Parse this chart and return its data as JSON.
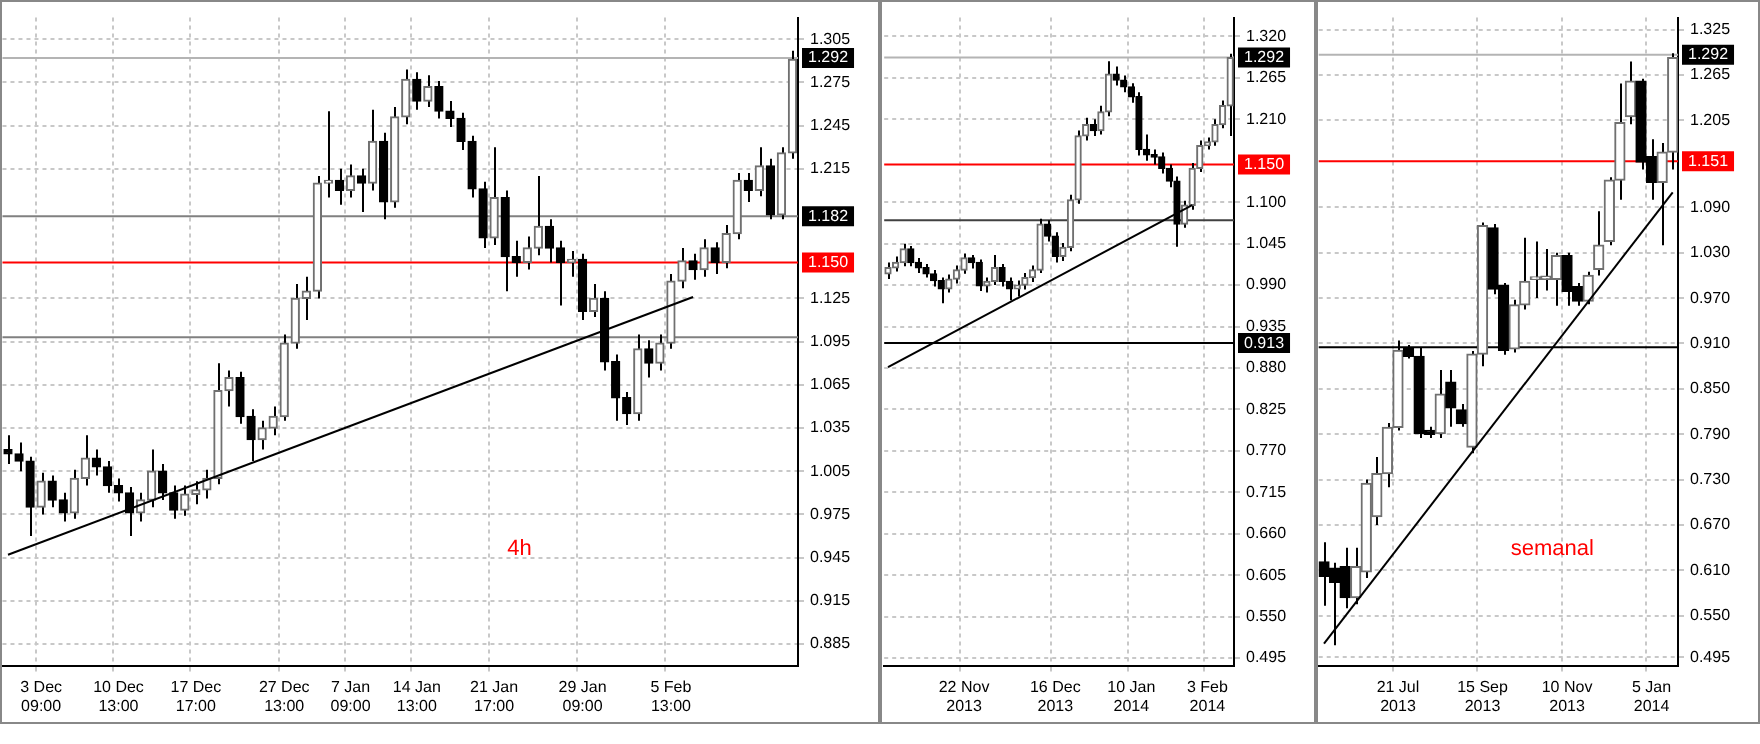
{
  "chart_data": [
    {
      "type": "candlestick",
      "categories": [
        null,
        null,
        null,
        "3 Dec 09:00",
        null,
        null,
        null,
        null,
        null,
        null,
        "10 Dec 13:00",
        null,
        null,
        null,
        null,
        null,
        null,
        "17 Dec 17:00",
        null,
        null,
        null,
        null,
        null,
        null,
        null,
        "27 Dec 13:00",
        null,
        null,
        null,
        null,
        null,
        "7 Jan 09:00",
        null,
        null,
        null,
        null,
        null,
        "14 Jan 13:00",
        null,
        null,
        null,
        null,
        null,
        null,
        "21 Jan 17:00",
        null,
        null,
        null,
        null,
        null,
        null,
        null,
        "29 Jan 09:00",
        null,
        null,
        null,
        null,
        null,
        null,
        null,
        "5 Feb 13:00",
        null,
        null,
        null,
        null,
        null,
        null,
        null,
        null,
        null,
        null,
        null
      ],
      "ohlc": [
        [
          1.02,
          1.03,
          1.01,
          1.017
        ],
        [
          1.017,
          1.025,
          1.005,
          1.012
        ],
        [
          1.012,
          1.015,
          0.96,
          0.98
        ],
        [
          0.98,
          1.004,
          0.975,
          0.998
        ],
        [
          0.998,
          1.002,
          0.98,
          0.985
        ],
        [
          0.985,
          0.99,
          0.97,
          0.976
        ],
        [
          0.976,
          1.006,
          0.972,
          1.0
        ],
        [
          1.0,
          1.03,
          0.995,
          1.014
        ],
        [
          1.014,
          1.02,
          1.002,
          1.008
        ],
        [
          1.008,
          1.012,
          0.99,
          0.995
        ],
        [
          0.995,
          1.0,
          0.984,
          0.99
        ],
        [
          0.99,
          0.994,
          0.96,
          0.976
        ],
        [
          0.976,
          0.99,
          0.97,
          0.985
        ],
        [
          0.985,
          1.02,
          0.98,
          1.005
        ],
        [
          1.005,
          1.01,
          0.985,
          0.99
        ],
        [
          0.99,
          0.995,
          0.972,
          0.978
        ],
        [
          0.978,
          0.995,
          0.974,
          0.989
        ],
        [
          0.989,
          0.998,
          0.982,
          0.992
        ],
        [
          0.992,
          1.006,
          0.986,
          1.0
        ],
        [
          1.0,
          1.08,
          0.996,
          1.061
        ],
        [
          1.061,
          1.075,
          1.05,
          1.07
        ],
        [
          1.07,
          1.074,
          1.038,
          1.043
        ],
        [
          1.043,
          1.048,
          1.012,
          1.027
        ],
        [
          1.027,
          1.04,
          1.02,
          1.035
        ],
        [
          1.035,
          1.05,
          1.03,
          1.043
        ],
        [
          1.043,
          1.1,
          1.04,
          1.094
        ],
        [
          1.094,
          1.135,
          1.09,
          1.125
        ],
        [
          1.125,
          1.14,
          1.11,
          1.13
        ],
        [
          1.13,
          1.21,
          1.125,
          1.205
        ],
        [
          1.205,
          1.255,
          1.195,
          1.207
        ],
        [
          1.207,
          1.215,
          1.19,
          1.2
        ],
        [
          1.2,
          1.218,
          1.195,
          1.21
        ],
        [
          1.21,
          1.215,
          1.185,
          1.205
        ],
        [
          1.205,
          1.256,
          1.2,
          1.234
        ],
        [
          1.234,
          1.24,
          1.18,
          1.192
        ],
        [
          1.192,
          1.258,
          1.188,
          1.251
        ],
        [
          1.251,
          1.284,
          1.246,
          1.277
        ],
        [
          1.277,
          1.282,
          1.256,
          1.262
        ],
        [
          1.262,
          1.28,
          1.258,
          1.272
        ],
        [
          1.272,
          1.276,
          1.25,
          1.255
        ],
        [
          1.255,
          1.262,
          1.244,
          1.25
        ],
        [
          1.25,
          1.254,
          1.228,
          1.234
        ],
        [
          1.234,
          1.238,
          1.195,
          1.201
        ],
        [
          1.201,
          1.206,
          1.16,
          1.167
        ],
        [
          1.167,
          1.23,
          1.162,
          1.195
        ],
        [
          1.195,
          1.2,
          1.13,
          1.154
        ],
        [
          1.154,
          1.165,
          1.14,
          1.15
        ],
        [
          1.15,
          1.168,
          1.145,
          1.16
        ],
        [
          1.16,
          1.21,
          1.155,
          1.175
        ],
        [
          1.175,
          1.18,
          1.15,
          1.16
        ],
        [
          1.16,
          1.165,
          1.12,
          1.15
        ],
        [
          1.15,
          1.158,
          1.14,
          1.152
        ],
        [
          1.152,
          1.156,
          1.11,
          1.116
        ],
        [
          1.116,
          1.135,
          1.112,
          1.125
        ],
        [
          1.125,
          1.13,
          1.075,
          1.081
        ],
        [
          1.081,
          1.086,
          1.04,
          1.056
        ],
        [
          1.056,
          1.06,
          1.037,
          1.045
        ],
        [
          1.045,
          1.1,
          1.04,
          1.09
        ],
        [
          1.09,
          1.096,
          1.07,
          1.08
        ],
        [
          1.08,
          1.1,
          1.075,
          1.094
        ],
        [
          1.094,
          1.142,
          1.09,
          1.137
        ],
        [
          1.137,
          1.16,
          1.132,
          1.151
        ],
        [
          1.151,
          1.156,
          1.138,
          1.145
        ],
        [
          1.145,
          1.166,
          1.14,
          1.16
        ],
        [
          1.16,
          1.164,
          1.142,
          1.15
        ],
        [
          1.15,
          1.176,
          1.146,
          1.17
        ],
        [
          1.17,
          1.212,
          1.166,
          1.207
        ],
        [
          1.207,
          1.212,
          1.192,
          1.2
        ],
        [
          1.2,
          1.23,
          1.196,
          1.217
        ],
        [
          1.217,
          1.222,
          1.18,
          1.183
        ],
        [
          1.183,
          1.23,
          1.18,
          1.226
        ],
        [
          1.226,
          1.297,
          1.222,
          1.291
        ]
      ],
      "series": [
        {
          "type": "line",
          "color": "#000000",
          "values": [
            0.947,
            null,
            null,
            null,
            null,
            null,
            null,
            null,
            null,
            null,
            null,
            null,
            null,
            null,
            null,
            null,
            null,
            null,
            null,
            null,
            null,
            null,
            null,
            null,
            null,
            null,
            null,
            null,
            null,
            null,
            null,
            null,
            null,
            null,
            null,
            null,
            null,
            null,
            null,
            null,
            null,
            null,
            null,
            null,
            null,
            null,
            null,
            null,
            null,
            null,
            null,
            null,
            null,
            null,
            null,
            null,
            null,
            null,
            null,
            null,
            null,
            null,
            1.126,
            null,
            null,
            null,
            null,
            null,
            null,
            null,
            null,
            null
          ]
        }
      ],
      "ylim": [
        0.87,
        1.32
      ],
      "yticks": [
        1.305,
        1.275,
        1.245,
        1.215,
        1.125,
        1.095,
        1.065,
        1.035,
        1.005,
        0.975,
        0.945,
        0.915,
        0.885
      ],
      "grid": true,
      "ref_lines": [
        {
          "axis": "y",
          "value": 1.292,
          "label": "1.292",
          "color": "#b4b4b4"
        },
        {
          "axis": "y",
          "value": 1.182,
          "label": "1.182",
          "color": "#808080"
        },
        {
          "axis": "y",
          "value": 1.15,
          "label": "1.150",
          "color": "#ff0000"
        },
        {
          "axis": "y",
          "value": 1.098,
          "color": "#808080"
        }
      ],
      "annotations": [
        "4h"
      ]
    },
    {
      "type": "candlestick",
      "categories": [
        null,
        null,
        null,
        null,
        null,
        null,
        null,
        null,
        null,
        null,
        "22 Nov 2013",
        null,
        null,
        null,
        null,
        null,
        null,
        null,
        null,
        null,
        null,
        null,
        "16 Dec 2013",
        null,
        null,
        null,
        null,
        null,
        null,
        null,
        null,
        null,
        "10 Jan 2014",
        null,
        null,
        null,
        null,
        null,
        null,
        null,
        null,
        null,
        "3 Feb 2014",
        null,
        null,
        null
      ],
      "ohlc": [
        [
          1.005,
          1.02,
          0.998,
          1.013
        ],
        [
          1.013,
          1.028,
          1.008,
          1.02
        ],
        [
          1.02,
          1.045,
          1.015,
          1.038
        ],
        [
          1.038,
          1.042,
          1.015,
          1.02
        ],
        [
          1.02,
          1.026,
          1.006,
          1.013
        ],
        [
          1.013,
          1.018,
          1.0,
          1.005
        ],
        [
          1.005,
          1.01,
          0.988,
          0.996
        ],
        [
          0.996,
          1.0,
          0.966,
          0.985
        ],
        [
          0.985,
          1.004,
          0.98,
          0.998
        ],
        [
          0.998,
          1.016,
          0.992,
          1.01
        ],
        [
          1.01,
          1.032,
          1.005,
          1.026
        ],
        [
          1.026,
          1.03,
          1.012,
          1.02
        ],
        [
          1.02,
          1.024,
          0.982,
          0.989
        ],
        [
          0.989,
          1.0,
          0.98,
          0.995
        ],
        [
          0.995,
          1.03,
          0.99,
          1.013
        ],
        [
          1.013,
          1.018,
          0.988,
          0.995
        ],
        [
          0.995,
          1.0,
          0.97,
          0.985
        ],
        [
          0.985,
          0.996,
          0.975,
          0.99
        ],
        [
          0.99,
          1.006,
          0.984,
          1.0
        ],
        [
          1.0,
          1.016,
          0.994,
          1.01
        ],
        [
          1.01,
          1.078,
          1.006,
          1.071
        ],
        [
          1.071,
          1.076,
          1.048,
          1.055
        ],
        [
          1.055,
          1.06,
          1.02,
          1.028
        ],
        [
          1.028,
          1.046,
          1.022,
          1.04
        ],
        [
          1.04,
          1.11,
          1.035,
          1.103
        ],
        [
          1.103,
          1.195,
          1.098,
          1.188
        ],
        [
          1.188,
          1.212,
          1.182,
          1.203
        ],
        [
          1.203,
          1.21,
          1.188,
          1.195
        ],
        [
          1.195,
          1.228,
          1.19,
          1.22
        ],
        [
          1.22,
          1.287,
          1.214,
          1.27
        ],
        [
          1.27,
          1.28,
          1.255,
          1.262
        ],
        [
          1.262,
          1.268,
          1.246,
          1.253
        ],
        [
          1.253,
          1.258,
          1.232,
          1.24
        ],
        [
          1.24,
          1.246,
          1.162,
          1.17
        ],
        [
          1.17,
          1.19,
          1.155,
          1.163
        ],
        [
          1.163,
          1.17,
          1.15,
          1.16
        ],
        [
          1.16,
          1.166,
          1.138,
          1.145
        ],
        [
          1.145,
          1.15,
          1.12,
          1.128
        ],
        [
          1.128,
          1.134,
          1.041,
          1.071
        ],
        [
          1.071,
          1.102,
          1.066,
          1.096
        ],
        [
          1.096,
          1.152,
          1.09,
          1.145
        ],
        [
          1.145,
          1.182,
          1.14,
          1.175
        ],
        [
          1.175,
          1.186,
          1.17,
          1.18
        ],
        [
          1.18,
          1.21,
          1.175,
          1.203
        ],
        [
          1.203,
          1.235,
          1.198,
          1.228
        ],
        [
          1.228,
          1.297,
          1.188,
          1.292
        ]
      ],
      "series": [
        {
          "type": "line",
          "color": "#000000",
          "values": [
            0.881,
            null,
            null,
            null,
            null,
            null,
            null,
            null,
            null,
            null,
            null,
            null,
            null,
            null,
            null,
            null,
            null,
            null,
            null,
            null,
            null,
            null,
            null,
            null,
            null,
            null,
            null,
            null,
            null,
            null,
            null,
            null,
            null,
            null,
            null,
            null,
            null,
            null,
            null,
            null,
            1.096,
            null,
            null,
            null,
            null,
            null
          ]
        }
      ],
      "ylim": [
        0.485,
        1.345
      ],
      "yticks": [
        {
          "value": 1.32,
          "label": "1.320"
        },
        1.265,
        {
          "value": 1.21,
          "label": "1.210"
        },
        {
          "value": 1.1,
          "label": "1.100"
        },
        1.045,
        {
          "value": 0.99,
          "label": "0.990"
        },
        0.935,
        {
          "value": 0.88,
          "label": "0.880"
        },
        0.825,
        {
          "value": 0.77,
          "label": "0.770"
        },
        0.715,
        {
          "value": 0.66,
          "label": "0.660"
        },
        0.605,
        {
          "value": 0.55,
          "label": "0.550"
        },
        0.495
      ],
      "grid": true,
      "ref_lines": [
        {
          "axis": "y",
          "value": 1.292,
          "label": "1.292",
          "color": "#b4b4b4"
        },
        {
          "axis": "y",
          "value": 1.15,
          "label": "1.150",
          "color": "#ff0000"
        },
        {
          "axis": "y",
          "value": 0.913,
          "label": "0.913",
          "color": "#000000"
        },
        {
          "axis": "y",
          "value": 1.076,
          "color": "#404040"
        }
      ]
    },
    {
      "type": "candlestick",
      "categories": [
        null,
        null,
        null,
        null,
        null,
        null,
        null,
        "21 Jul 2013",
        null,
        null,
        null,
        null,
        null,
        null,
        null,
        "15 Sep 2013",
        null,
        null,
        null,
        null,
        null,
        null,
        null,
        "10 Nov 2013",
        null,
        null,
        null,
        null,
        null,
        null,
        null,
        "5 Jan 2014",
        null,
        null
      ],
      "ohlc": [
        [
          0.621,
          0.647,
          0.563,
          0.602
        ],
        [
          0.613,
          0.62,
          0.511,
          0.594
        ],
        [
          0.615,
          0.64,
          0.56,
          0.574
        ],
        [
          0.574,
          0.64,
          0.565,
          0.615
        ],
        [
          0.608,
          0.73,
          0.6,
          0.725
        ],
        [
          0.681,
          0.76,
          0.67,
          0.738
        ],
        [
          0.738,
          0.805,
          0.72,
          0.799
        ],
        [
          0.799,
          0.914,
          0.795,
          0.901
        ],
        [
          0.903,
          0.908,
          0.89,
          0.893
        ],
        [
          0.893,
          0.905,
          0.785,
          0.791
        ],
        [
          0.795,
          0.8,
          0.785,
          0.79
        ],
        [
          0.791,
          0.875,
          0.785,
          0.843
        ],
        [
          0.859,
          0.875,
          0.8,
          0.825
        ],
        [
          0.822,
          0.83,
          0.8,
          0.804
        ],
        [
          0.773,
          0.9,
          0.765,
          0.896
        ],
        [
          0.896,
          1.07,
          0.88,
          1.066
        ],
        [
          1.063,
          1.068,
          0.975,
          0.982
        ],
        [
          0.987,
          0.99,
          0.895,
          0.901
        ],
        [
          0.903,
          0.968,
          0.898,
          0.961
        ],
        [
          0.961,
          1.05,
          0.955,
          0.992
        ],
        [
          0.995,
          1.045,
          0.97,
          0.998
        ],
        [
          0.995,
          1.035,
          0.98,
          0.999
        ],
        [
          0.995,
          1.03,
          0.96,
          1.026
        ],
        [
          1.026,
          1.03,
          0.96,
          0.979
        ],
        [
          0.985,
          0.99,
          0.96,
          0.966
        ],
        [
          0.966,
          1.005,
          0.962,
          1.0
        ],
        [
          1.008,
          1.085,
          1.0,
          1.04
        ],
        [
          1.045,
          1.13,
          1.04,
          1.126
        ],
        [
          1.126,
          1.254,
          1.1,
          1.202
        ],
        [
          1.21,
          1.283,
          1.2,
          1.257
        ],
        [
          1.257,
          1.26,
          1.14,
          1.15
        ],
        [
          1.157,
          1.18,
          1.1,
          1.123
        ],
        [
          1.123,
          1.175,
          1.04,
          1.163
        ],
        [
          1.163,
          1.294,
          1.14,
          1.288
        ]
      ],
      "series": [
        {
          "type": "line",
          "color": "#000000",
          "values": [
            0.513,
            null,
            null,
            null,
            null,
            null,
            null,
            null,
            null,
            null,
            null,
            null,
            null,
            null,
            null,
            null,
            null,
            null,
            null,
            null,
            null,
            null,
            null,
            null,
            null,
            null,
            null,
            null,
            null,
            null,
            null,
            null,
            null,
            1.11
          ]
        }
      ],
      "ylim": [
        0.484,
        1.341
      ],
      "yticks": [
        1.325,
        1.265,
        1.205,
        {
          "value": 1.09,
          "label": "1.090"
        },
        {
          "value": 1.03,
          "label": "1.030"
        },
        {
          "value": 0.97,
          "label": "0.970"
        },
        {
          "value": 0.91,
          "label": "0.910"
        },
        {
          "value": 0.85,
          "label": "0.850"
        },
        {
          "value": 0.79,
          "label": "0.790"
        },
        {
          "value": 0.73,
          "label": "0.730"
        },
        {
          "value": 0.67,
          "label": "0.670"
        },
        {
          "value": 0.61,
          "label": "0.610"
        },
        {
          "value": 0.55,
          "label": "0.550"
        },
        0.495
      ],
      "grid": true,
      "ref_lines": [
        {
          "axis": "y",
          "value": 1.292,
          "label": "1.292",
          "color": "#b4b4b4"
        },
        {
          "axis": "y",
          "value": 1.151,
          "label": "1.151",
          "color": "#ff0000"
        },
        {
          "axis": "y",
          "value": 0.905,
          "color": "#000000"
        }
      ],
      "annotations": [
        "semanal"
      ]
    }
  ]
}
